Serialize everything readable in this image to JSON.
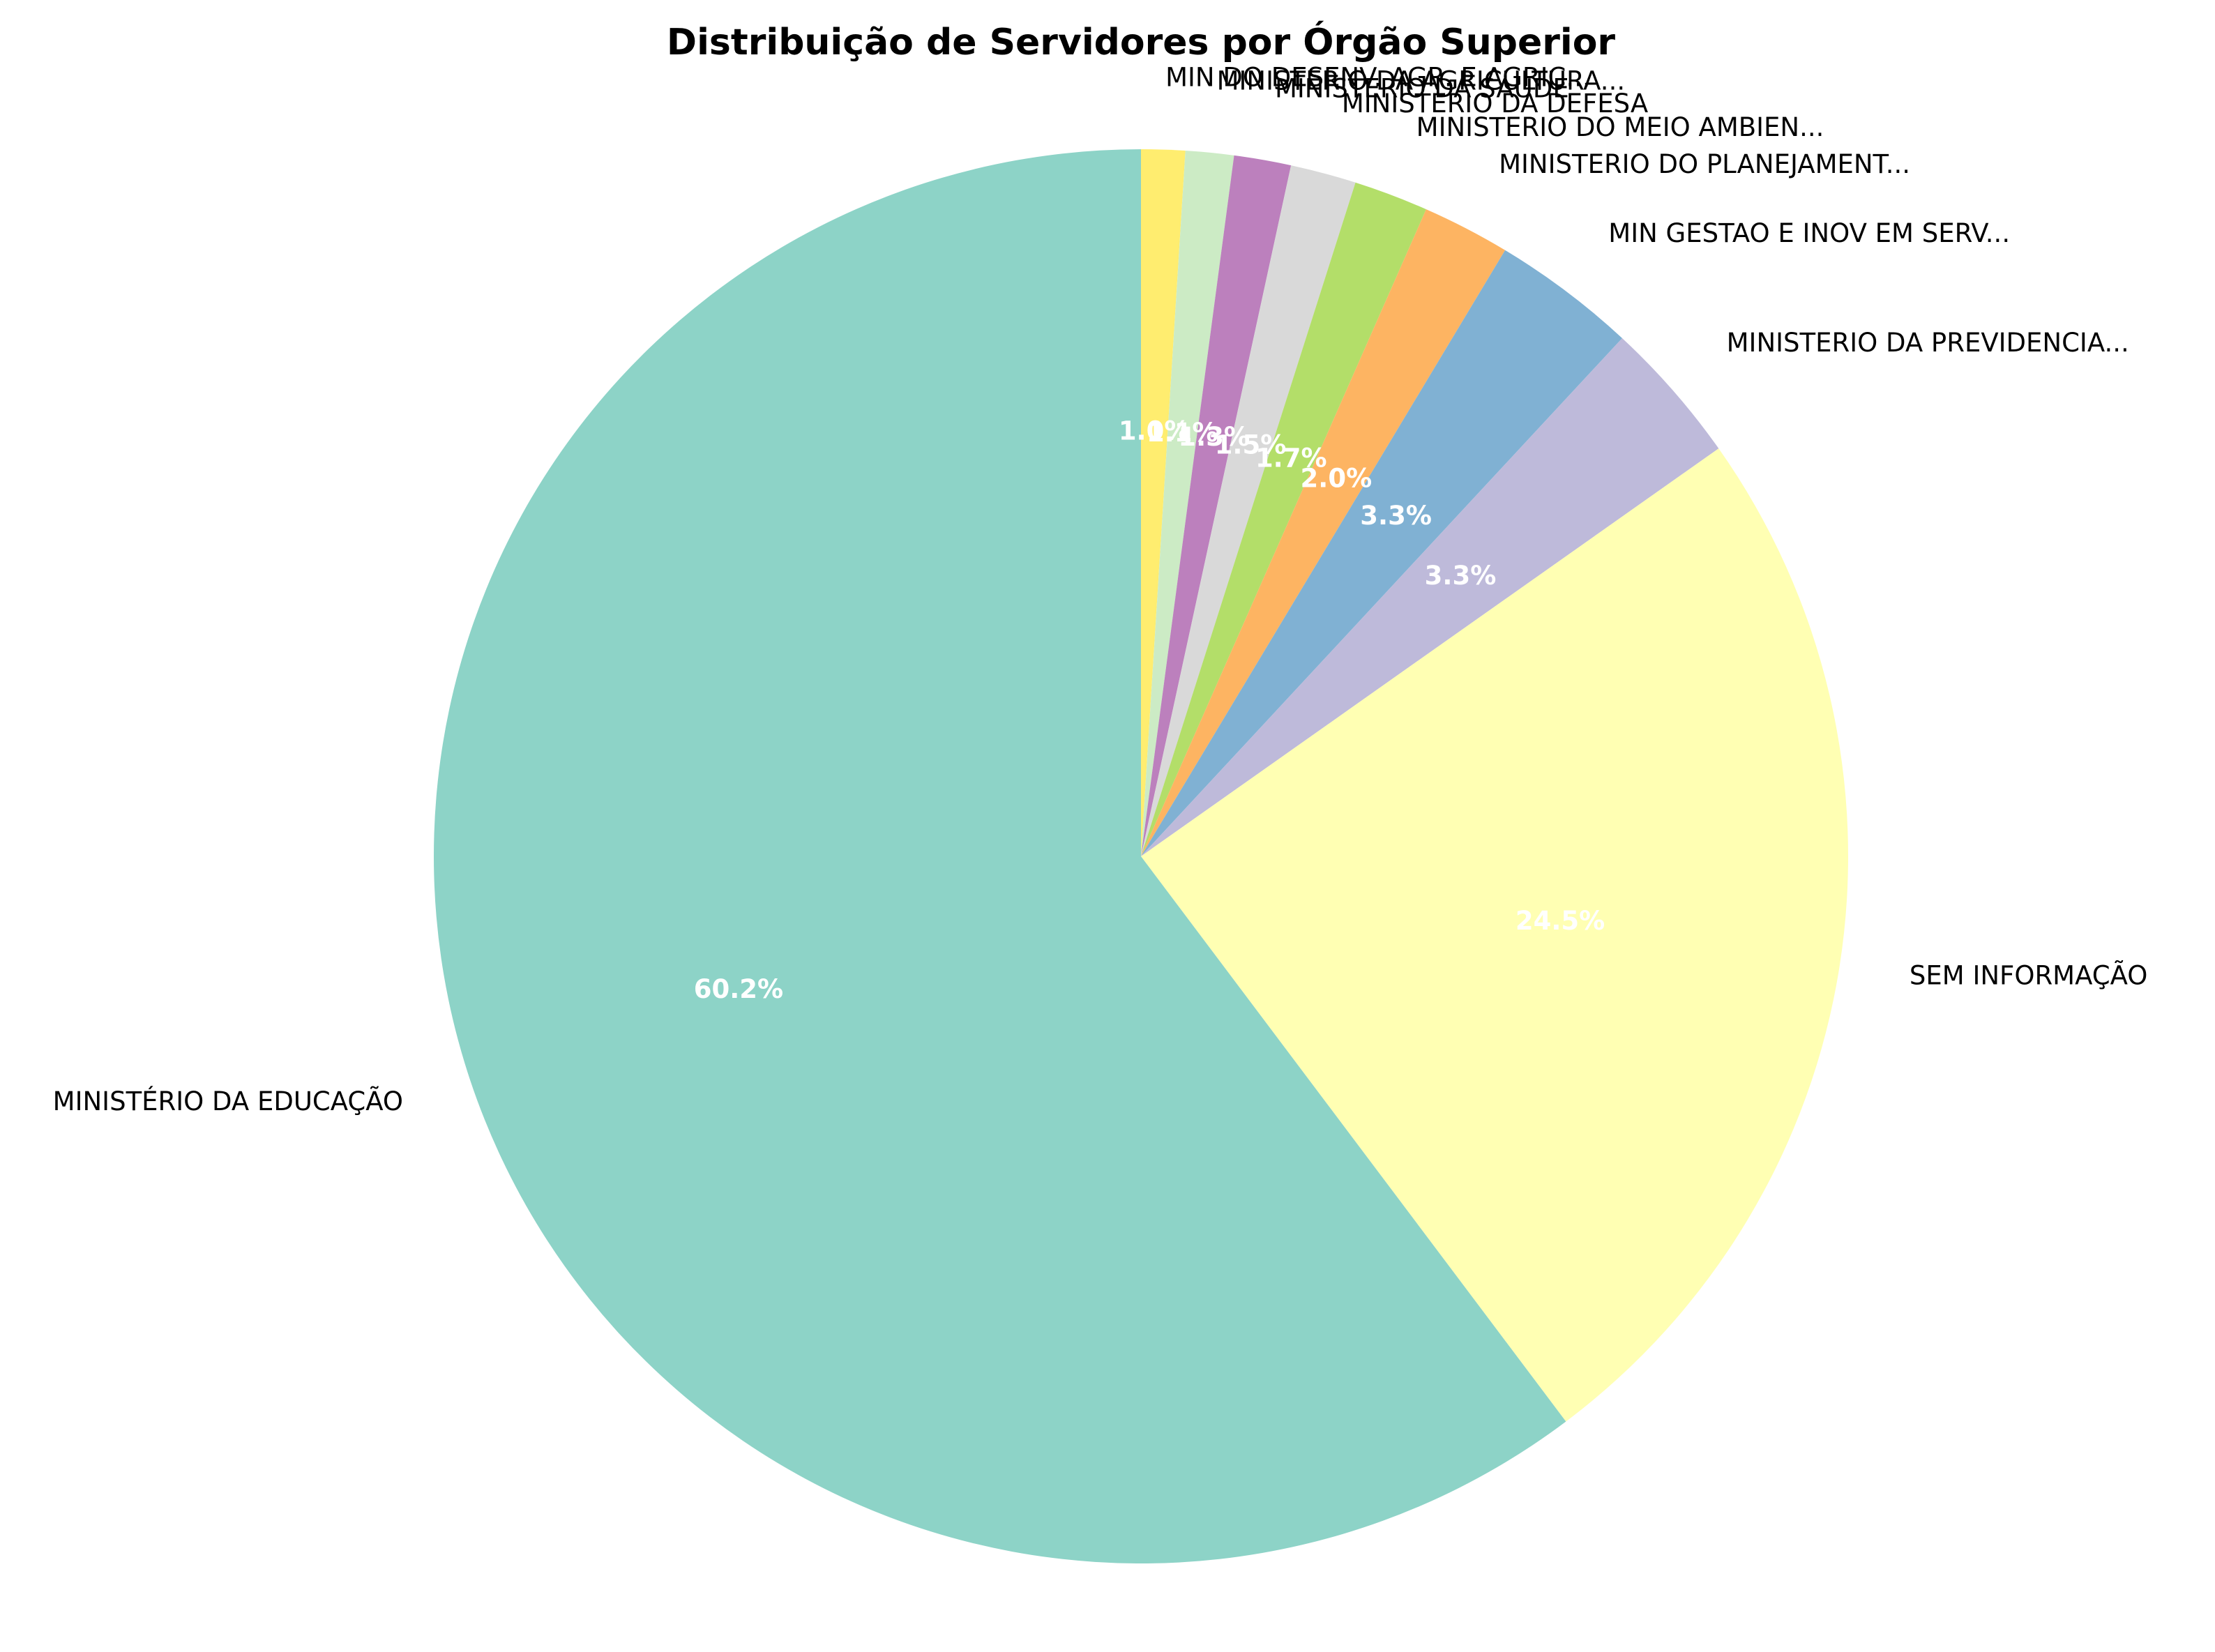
{
  "chart_data": {
    "type": "pie",
    "title": "Distribuição de Servidores por Órgão Superior",
    "start_angle_deg": 90,
    "direction": "clockwise",
    "slices": [
      {
        "label": "MIN DO DESENV. AGR. E AGRIC...",
        "value": 1.0,
        "pct_label": "1.0%",
        "color": "#ffed6f"
      },
      {
        "label": "MINISTERIO DA AGRICULTURA...",
        "value": 1.1,
        "pct_label": "1.1%",
        "color": "#ccebc5"
      },
      {
        "label": "MINISTERIO DA SAUDE",
        "value": 1.3,
        "pct_label": "1.3%",
        "color": "#bc80bd"
      },
      {
        "label": "MINISTERIO DA DEFESA",
        "value": 1.5,
        "pct_label": "1.5%",
        "color": "#d9d9d9"
      },
      {
        "label": "MINISTERIO DO MEIO AMBIEN...",
        "value": 1.7,
        "pct_label": "1.7%",
        "color": "#b3de69"
      },
      {
        "label": "MINISTERIO DO PLANEJAMENT...",
        "value": 2.0,
        "pct_label": "2.0%",
        "color": "#fdb462"
      },
      {
        "label": "MIN GESTAO E INOV EM SERV...",
        "value": 3.3,
        "pct_label": "3.3%",
        "color": "#80b1d3"
      },
      {
        "label": "MINISTERIO DA PREVIDENCIA...",
        "value": 3.3,
        "pct_label": "3.3%",
        "color": "#bebada"
      },
      {
        "label": "SEM INFORMAÇÃO",
        "value": 24.5,
        "pct_label": "24.5%",
        "color": "#ffffb3"
      },
      {
        "label": "MINISTÉRIO DA EDUCAÇÃO",
        "value": 60.2,
        "pct_label": "60.2%",
        "color": "#8dd3c7"
      }
    ]
  }
}
